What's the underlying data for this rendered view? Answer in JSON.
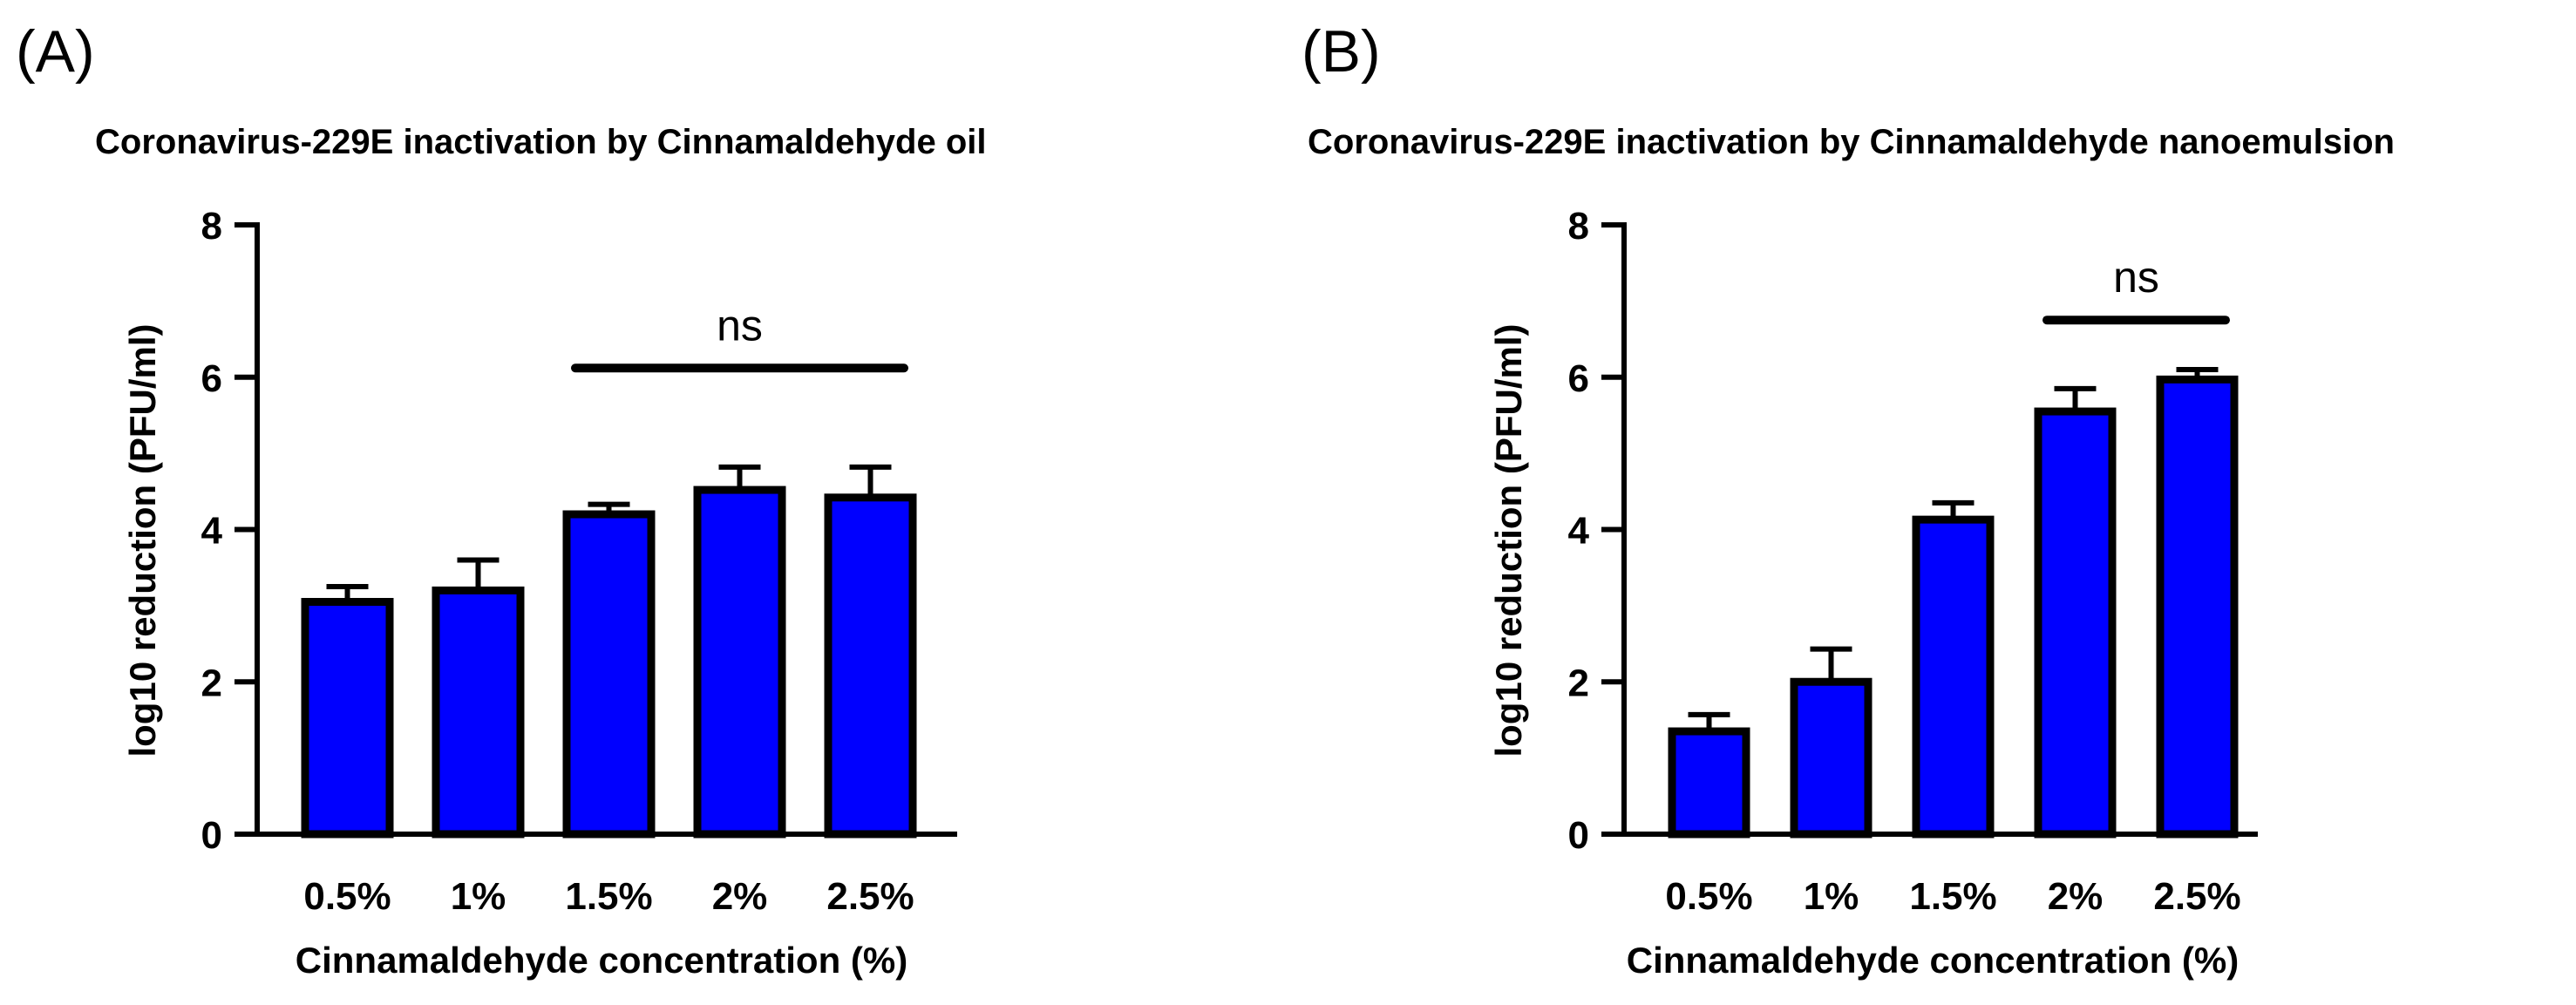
{
  "chart_data": [
    {
      "type": "bar",
      "panel_label": "(A)",
      "title": "Coronavirus-229E inactivation by Cinnamaldehyde oil",
      "xlabel": "Cinnamaldehyde concentration (%)",
      "ylabel": "log10 reduction (PFU/ml)",
      "categories": [
        "0.5%",
        "1%",
        "1.5%",
        "2%",
        "2.5%"
      ],
      "values": [
        3.05,
        3.2,
        4.2,
        4.52,
        4.42
      ],
      "errors": [
        0.2,
        0.4,
        0.13,
        0.3,
        0.4
      ],
      "ylim": [
        0,
        8
      ],
      "yticks": [
        "0",
        "2",
        "4",
        "6",
        "8"
      ],
      "bar_color": "#0000FF",
      "significance": {
        "label": "ns",
        "from_index": 2,
        "to_index": 4,
        "y": 6.12
      }
    },
    {
      "type": "bar",
      "panel_label": "(B)",
      "title": "Coronavirus-229E inactivation by Cinnamaldehyde nanoemulsion",
      "xlabel": "Cinnamaldehyde concentration (%)",
      "ylabel": "log10 reduction (PFU/ml)",
      "categories": [
        "0.5%",
        "1%",
        "1.5%",
        "2%",
        "2.5%"
      ],
      "values": [
        1.35,
        2.0,
        4.13,
        5.55,
        5.97
      ],
      "errors": [
        0.22,
        0.43,
        0.22,
        0.3,
        0.13
      ],
      "ylim": [
        0,
        8
      ],
      "yticks": [
        "0",
        "2",
        "4",
        "6",
        "8"
      ],
      "bar_color": "#0000FF",
      "significance": {
        "label": "ns",
        "from_index": 3,
        "to_index": 4,
        "y": 6.75
      }
    }
  ]
}
